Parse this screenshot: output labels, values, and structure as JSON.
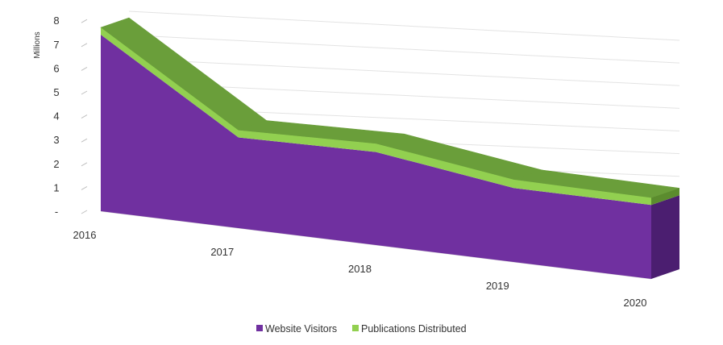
{
  "chart_data": {
    "type": "area",
    "style": "3d-stacked-area",
    "title": "",
    "xlabel": "",
    "ylabel": "Millions",
    "ylim": [
      0,
      8
    ],
    "y_ticks": [
      "-",
      "1",
      "2",
      "3",
      "4",
      "5",
      "6",
      "7",
      "8"
    ],
    "categories": [
      "2016",
      "2017",
      "2018",
      "2019",
      "2020"
    ],
    "series": [
      {
        "name": "Website Visitors",
        "color": "#7030a0",
        "values": [
          7.4,
          3.8,
          3.9,
          3.1,
          3.1
        ]
      },
      {
        "name": "Publications Distributed",
        "color": "#92d050",
        "values": [
          0.3,
          0.3,
          0.35,
          0.35,
          0.3
        ]
      }
    ],
    "grid": true,
    "legend_position": "bottom"
  }
}
